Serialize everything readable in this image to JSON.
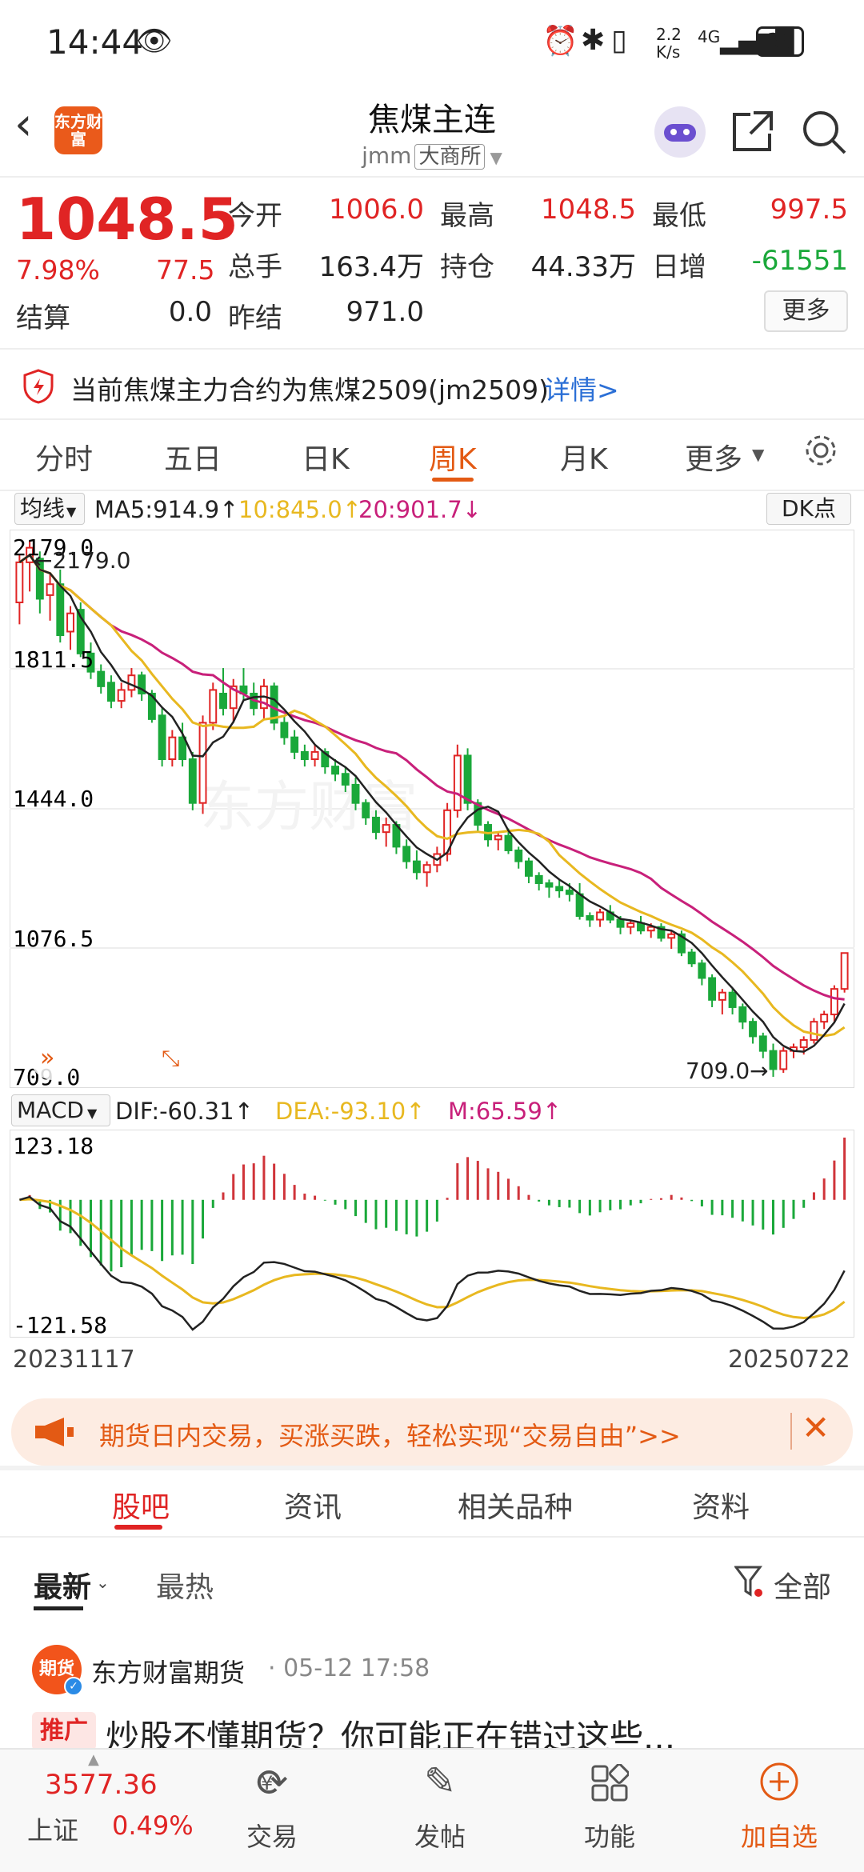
{
  "status": {
    "time": "14:44",
    "net_speed": "2.2 K/s",
    "signal": "4G",
    "battery": "39"
  },
  "header": {
    "title": "焦煤主连",
    "code": "jmm",
    "exchange": "大商所",
    "logo_text": "东方财富"
  },
  "quote": {
    "price": "1048.5",
    "change_pct": "7.98%",
    "change": "77.5",
    "open_label": "今开",
    "open": "1006.0",
    "high_label": "最高",
    "high": "1048.5",
    "low_label": "最低",
    "low": "997.5",
    "volume_label": "总手",
    "volume": "163.4万",
    "oi_label": "持仓",
    "oi": "44.33万",
    "day_inc_label": "日增",
    "day_inc": "-61551",
    "settle_label": "结算",
    "settle": "0.0",
    "prev_settle_label": "昨结",
    "prev_settle": "971.0",
    "more_label": "更多"
  },
  "notice": {
    "text": "当前焦煤主力合约为焦煤2509(jm2509)",
    "link": "详情>"
  },
  "k_tabs": [
    "分时",
    "五日",
    "日K",
    "周K",
    "月K",
    "更多"
  ],
  "ma": {
    "select": "均线",
    "ma5": "MA5:914.9↑",
    "ma10": "10:845.0↑",
    "ma20": "20:901.7↓",
    "dk": "DK点"
  },
  "macd": {
    "select": "MACD",
    "dif": "DIF:-60.31↑",
    "dea": "DEA:-93.10↑",
    "m": "M:65.59↑",
    "top": "123.18",
    "bottom": "-121.58"
  },
  "dates": {
    "start": "20231117",
    "end": "20250722"
  },
  "chart_data": {
    "type": "candlestick",
    "y_labels": [
      "2179.0",
      "1811.5",
      "1444.0",
      "1076.5",
      "709.0"
    ],
    "ylim": [
      709.0,
      2179.0
    ],
    "max_marker": "2179.0",
    "min_marker": "709.0",
    "ohlc": [
      [
        2010,
        2140,
        1950,
        2120
      ],
      [
        2120,
        2179,
        2040,
        2160
      ],
      [
        2130,
        2150,
        1980,
        2020
      ],
      [
        2030,
        2090,
        1960,
        2060
      ],
      [
        2060,
        2100,
        1900,
        1920
      ],
      [
        1930,
        2000,
        1880,
        1980
      ],
      [
        1990,
        2010,
        1860,
        1870
      ],
      [
        1870,
        1900,
        1800,
        1820
      ],
      [
        1820,
        1840,
        1760,
        1780
      ],
      [
        1790,
        1810,
        1720,
        1740
      ],
      [
        1740,
        1790,
        1720,
        1770
      ],
      [
        1770,
        1830,
        1750,
        1810
      ],
      [
        1810,
        1820,
        1740,
        1760
      ],
      [
        1760,
        1770,
        1680,
        1690
      ],
      [
        1700,
        1720,
        1560,
        1580
      ],
      [
        1580,
        1660,
        1560,
        1640
      ],
      [
        1640,
        1680,
        1560,
        1580
      ],
      [
        1580,
        1600,
        1440,
        1460
      ],
      [
        1460,
        1700,
        1430,
        1680
      ],
      [
        1680,
        1790,
        1660,
        1770
      ],
      [
        1760,
        1830,
        1700,
        1720
      ],
      [
        1720,
        1800,
        1680,
        1780
      ],
      [
        1780,
        1830,
        1740,
        1760
      ],
      [
        1760,
        1790,
        1700,
        1720
      ],
      [
        1720,
        1800,
        1690,
        1780
      ],
      [
        1780,
        1790,
        1660,
        1680
      ],
      [
        1680,
        1700,
        1620,
        1640
      ],
      [
        1640,
        1660,
        1580,
        1600
      ],
      [
        1600,
        1620,
        1560,
        1580
      ],
      [
        1580,
        1620,
        1560,
        1600
      ],
      [
        1600,
        1610,
        1540,
        1560
      ],
      [
        1560,
        1580,
        1520,
        1540
      ],
      [
        1540,
        1560,
        1490,
        1510
      ],
      [
        1510,
        1530,
        1440,
        1460
      ],
      [
        1460,
        1470,
        1400,
        1420
      ],
      [
        1420,
        1440,
        1360,
        1380
      ],
      [
        1380,
        1420,
        1340,
        1400
      ],
      [
        1400,
        1410,
        1320,
        1340
      ],
      [
        1340,
        1360,
        1280,
        1300
      ],
      [
        1300,
        1330,
        1250,
        1270
      ],
      [
        1270,
        1300,
        1230,
        1290
      ],
      [
        1290,
        1340,
        1270,
        1320
      ],
      [
        1320,
        1460,
        1300,
        1440
      ],
      [
        1440,
        1620,
        1420,
        1590
      ],
      [
        1590,
        1610,
        1440,
        1460
      ],
      [
        1460,
        1470,
        1380,
        1400
      ],
      [
        1400,
        1410,
        1340,
        1360
      ],
      [
        1360,
        1380,
        1330,
        1370
      ],
      [
        1370,
        1390,
        1320,
        1330
      ],
      [
        1330,
        1340,
        1280,
        1300
      ],
      [
        1300,
        1310,
        1240,
        1260
      ],
      [
        1260,
        1270,
        1220,
        1240
      ],
      [
        1240,
        1250,
        1200,
        1230
      ],
      [
        1230,
        1250,
        1200,
        1220
      ],
      [
        1220,
        1240,
        1190,
        1210
      ],
      [
        1210,
        1240,
        1140,
        1150
      ],
      [
        1150,
        1160,
        1120,
        1140
      ],
      [
        1140,
        1170,
        1120,
        1160
      ],
      [
        1160,
        1180,
        1130,
        1140
      ],
      [
        1140,
        1150,
        1100,
        1120
      ],
      [
        1120,
        1140,
        1100,
        1130
      ],
      [
        1130,
        1150,
        1100,
        1110
      ],
      [
        1110,
        1130,
        1090,
        1120
      ],
      [
        1120,
        1130,
        1080,
        1090
      ],
      [
        1090,
        1110,
        1060,
        1100
      ],
      [
        1100,
        1110,
        1040,
        1050
      ],
      [
        1050,
        1060,
        1010,
        1020
      ],
      [
        1020,
        1030,
        960,
        980
      ],
      [
        980,
        990,
        900,
        920
      ],
      [
        920,
        950,
        880,
        940
      ],
      [
        940,
        950,
        880,
        900
      ],
      [
        900,
        910,
        840,
        860
      ],
      [
        860,
        870,
        800,
        820
      ],
      [
        820,
        830,
        760,
        780
      ],
      [
        780,
        800,
        709,
        730
      ],
      [
        730,
        790,
        720,
        780
      ],
      [
        780,
        800,
        760,
        790
      ],
      [
        790,
        820,
        770,
        810
      ],
      [
        810,
        870,
        800,
        860
      ],
      [
        860,
        890,
        840,
        880
      ],
      [
        880,
        960,
        860,
        950
      ],
      [
        950,
        1048.5,
        940,
        1048.5
      ]
    ]
  },
  "promo": {
    "text": "期货日内交易，买涨买跌，轻松实现“交易自由”>>"
  },
  "bottom_tabs": [
    "股吧",
    "资讯",
    "相关品种",
    "资料"
  ],
  "feed_tabs": {
    "latest": "最新",
    "hot": "最热",
    "filter": "全部"
  },
  "post": {
    "avatar_text": "期货",
    "author": "东方财富期货",
    "time": "· 05-12 17:58",
    "tag": "推广",
    "title": "炒股不懂期货？你可能正在错过这些..."
  },
  "bottom_nav": {
    "index_value": "3577.36",
    "index_name": "上证",
    "index_change": "0.49%",
    "trade": "交易",
    "post": "发帖",
    "function": "功能",
    "add": "加自选"
  }
}
